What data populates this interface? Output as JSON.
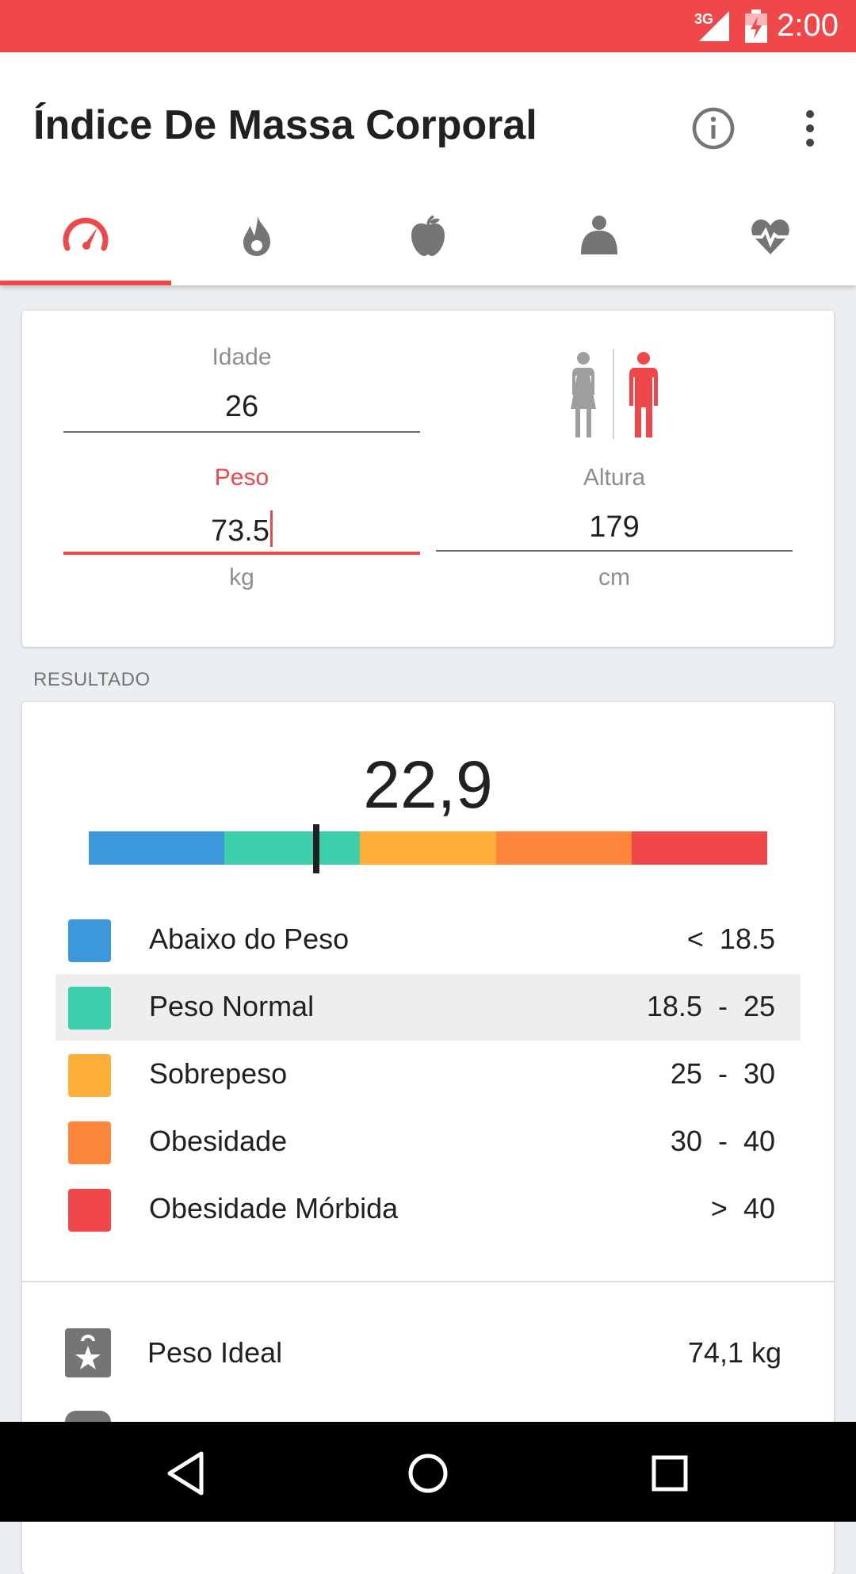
{
  "status_bar": {
    "network": "3G",
    "time": "2:00",
    "accent": "#f0474b"
  },
  "app_bar": {
    "title": "Índice De Massa Corporal",
    "info_icon": "info-icon",
    "more_icon": "more-vert-icon"
  },
  "tabs": [
    {
      "icon": "speedometer-icon",
      "selected": true
    },
    {
      "icon": "flame-icon",
      "selected": false
    },
    {
      "icon": "apple-icon",
      "selected": false
    },
    {
      "icon": "body-icon",
      "selected": false
    },
    {
      "icon": "heart-pulse-icon",
      "selected": false
    }
  ],
  "inputs": {
    "age": {
      "label": "Idade",
      "value": "26"
    },
    "weight": {
      "label": "Peso",
      "value": "73.5",
      "unit": "kg"
    },
    "height": {
      "label": "Altura",
      "value": "179",
      "unit": "cm"
    },
    "gender": {
      "female_icon": "female-icon",
      "male_icon": "male-icon",
      "selected": "male"
    }
  },
  "result": {
    "section_label": "RESULTADO",
    "bmi": "22,9",
    "bmi_numeric": 22.9,
    "scale_colors": [
      "#3a98db",
      "#3ccfac",
      "#fdaf3a",
      "#fd863a",
      "#f0474b"
    ],
    "categories": [
      {
        "name": "Abaixo do Peso",
        "range": "<  18.5",
        "color": "#3a98db"
      },
      {
        "name": "Peso Normal",
        "range": "18.5  -  25",
        "color": "#3ccfac",
        "highlight": true
      },
      {
        "name": "Sobrepeso",
        "range": "25  -  30",
        "color": "#fdaf3a"
      },
      {
        "name": "Obesidade",
        "range": "30  -  40",
        "color": "#fd863a"
      },
      {
        "name": "Obesidade Mórbida",
        "range": ">  40",
        "color": "#f0474b"
      }
    ],
    "ideal_weight": {
      "label": "Peso Ideal",
      "value": "74,1 kg",
      "icon": "ideal-weight-icon"
    }
  },
  "nav_bar": {
    "back_icon": "back-icon",
    "home_icon": "home-icon",
    "recents_icon": "recents-icon"
  }
}
